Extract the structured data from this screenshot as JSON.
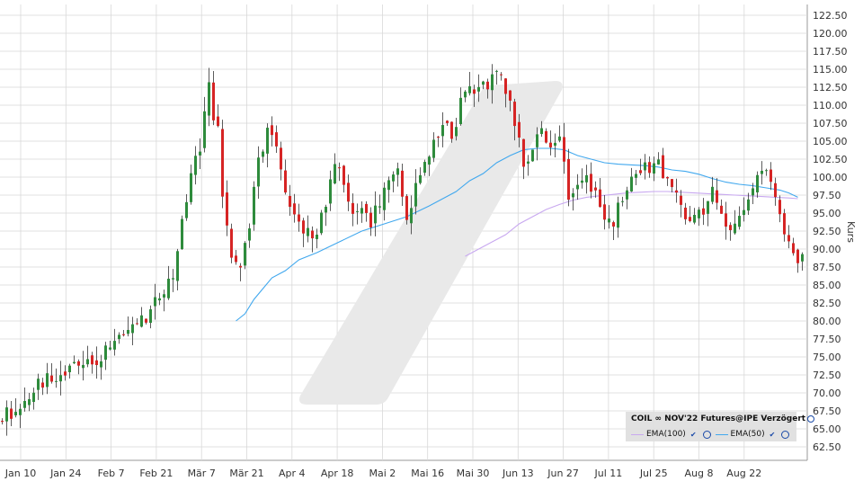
{
  "chart_data": {
    "type": "candlestick",
    "x_tick_labels": [
      "Jan 10",
      "Jan 24",
      "Feb 7",
      "Feb 21",
      "Mär 7",
      "Mär 21",
      "Apr 4",
      "Apr 18",
      "Mai 2",
      "Mai 16",
      "Mai 30",
      "Jun 13",
      "Jun 27",
      "Jul 11",
      "Jul 25",
      "Aug 8",
      "Aug 22"
    ],
    "y_axis_label": "Kurs",
    "ylim": [
      62.5,
      122.5
    ],
    "y_ticks": [
      "62.50",
      "65.00",
      "67.50",
      "70.00",
      "72.50",
      "75.00",
      "77.50",
      "80.00",
      "82.50",
      "85.00",
      "87.50",
      "90.00",
      "92.50",
      "95.00",
      "97.50",
      "100.00",
      "102.50",
      "105.00",
      "107.50",
      "110.00",
      "112.50",
      "115.00",
      "117.50",
      "120.00",
      "122.50"
    ],
    "grid": true,
    "legend_position": "bottom-right",
    "legend": {
      "instrument": "COIL ∞ NOV'22 Futures@IPE Verzögert",
      "series": [
        {
          "name": "EMA(100)",
          "color": "#c8a8f0"
        },
        {
          "name": "EMA(50)",
          "color": "#41a8ee"
        }
      ]
    },
    "colors": {
      "up": "#2e8b3c",
      "down": "#d62424",
      "grid": "#d8d8d8",
      "watermark": "#e9e9e9"
    },
    "price_path": [
      [
        0,
        66.5
      ],
      [
        5,
        68
      ],
      [
        10,
        71.5
      ],
      [
        15,
        73.5
      ],
      [
        20,
        74.5
      ],
      [
        25,
        76
      ],
      [
        30,
        78.5
      ],
      [
        33,
        81
      ],
      [
        35,
        82.5
      ],
      [
        37,
        84
      ],
      [
        39,
        86
      ],
      [
        41,
        93
      ],
      [
        43,
        101
      ],
      [
        45,
        104
      ],
      [
        47,
        112
      ],
      [
        49,
        106
      ],
      [
        50,
        98
      ],
      [
        52,
        89
      ],
      [
        54,
        87
      ],
      [
        56,
        93
      ],
      [
        58,
        102
      ],
      [
        60,
        107
      ],
      [
        62,
        104
      ],
      [
        64,
        99
      ],
      [
        65,
        96
      ],
      [
        67,
        94
      ],
      [
        69,
        92
      ],
      [
        71,
        91
      ],
      [
        73,
        97
      ],
      [
        75,
        102
      ],
      [
        77,
        98
      ],
      [
        79,
        96
      ],
      [
        81,
        97
      ],
      [
        83,
        94
      ],
      [
        85,
        96
      ],
      [
        87,
        100
      ],
      [
        89,
        101
      ],
      [
        91,
        94
      ],
      [
        93,
        99
      ],
      [
        95,
        102
      ],
      [
        97,
        104
      ],
      [
        99,
        107
      ],
      [
        101,
        106.5
      ],
      [
        103,
        110
      ],
      [
        105,
        112
      ],
      [
        107,
        113.5
      ],
      [
        109,
        113
      ],
      [
        111,
        114
      ],
      [
        113,
        112
      ],
      [
        115,
        107
      ],
      [
        116,
        105
      ],
      [
        117,
        101
      ],
      [
        119,
        104
      ],
      [
        121,
        108
      ],
      [
        123,
        104
      ],
      [
        125,
        106
      ],
      [
        127,
        98
      ],
      [
        129,
        99
      ],
      [
        131,
        99
      ],
      [
        133,
        97
      ],
      [
        135,
        94
      ],
      [
        137,
        94
      ],
      [
        139,
        97
      ],
      [
        141,
        101
      ],
      [
        143,
        101
      ],
      [
        145,
        101
      ],
      [
        147,
        102
      ],
      [
        149,
        100
      ],
      [
        151,
        97
      ],
      [
        153,
        95
      ],
      [
        155,
        94
      ],
      [
        157,
        96
      ],
      [
        159,
        98
      ],
      [
        161,
        95
      ],
      [
        163,
        93
      ],
      [
        165,
        94
      ],
      [
        167,
        96
      ],
      [
        169,
        100
      ],
      [
        171,
        101
      ],
      [
        173,
        97
      ],
      [
        174,
        95
      ],
      [
        175,
        92
      ],
      [
        177,
        90
      ],
      [
        178,
        88.5
      ]
    ],
    "ema50_path": [
      [
        52,
        80
      ],
      [
        54,
        81
      ],
      [
        56,
        83
      ],
      [
        58,
        84.5
      ],
      [
        60,
        86
      ],
      [
        63,
        87
      ],
      [
        66,
        88.5
      ],
      [
        70,
        89.5
      ],
      [
        75,
        91
      ],
      [
        80,
        92.5
      ],
      [
        85,
        93.5
      ],
      [
        90,
        94.5
      ],
      [
        95,
        96
      ],
      [
        98,
        97
      ],
      [
        101,
        98
      ],
      [
        104,
        99.5
      ],
      [
        107,
        100.5
      ],
      [
        110,
        102
      ],
      [
        113,
        103
      ],
      [
        116,
        103.8
      ],
      [
        119,
        104
      ],
      [
        122,
        104
      ],
      [
        125,
        103.8
      ],
      [
        128,
        103
      ],
      [
        131,
        102.5
      ],
      [
        134,
        102
      ],
      [
        137,
        101.8
      ],
      [
        140,
        101.7
      ],
      [
        143,
        101.6
      ],
      [
        146,
        101.4
      ],
      [
        149,
        101
      ],
      [
        152,
        100.8
      ],
      [
        155,
        100.4
      ],
      [
        158,
        99.8
      ],
      [
        161,
        99.3
      ],
      [
        164,
        99
      ],
      [
        167,
        98.8
      ],
      [
        170,
        98.5
      ],
      [
        173,
        98.2
      ],
      [
        175,
        97.8
      ],
      [
        177,
        97.2
      ]
    ],
    "ema100_path": [
      [
        103,
        89
      ],
      [
        106,
        90
      ],
      [
        109,
        91
      ],
      [
        112,
        92
      ],
      [
        115,
        93.5
      ],
      [
        118,
        94.5
      ],
      [
        121,
        95.5
      ],
      [
        124,
        96.2
      ],
      [
        127,
        96.8
      ],
      [
        130,
        97.2
      ],
      [
        133,
        97.4
      ],
      [
        136,
        97.6
      ],
      [
        139,
        97.8
      ],
      [
        142,
        97.9
      ],
      [
        145,
        98
      ],
      [
        148,
        98
      ],
      [
        151,
        97.9
      ],
      [
        154,
        97.8
      ],
      [
        157,
        97.7
      ],
      [
        160,
        97.6
      ],
      [
        163,
        97.5
      ],
      [
        166,
        97.4
      ],
      [
        169,
        97.3
      ],
      [
        172,
        97.2
      ],
      [
        175,
        97.1
      ],
      [
        177,
        97
      ]
    ],
    "candle_count": 179
  }
}
